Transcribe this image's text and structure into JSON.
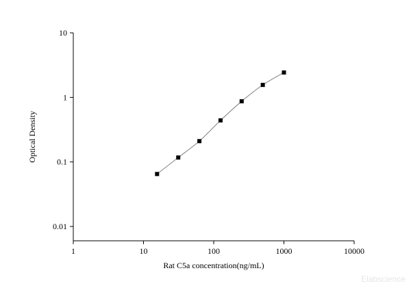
{
  "chart_data": {
    "type": "scatter",
    "x_label": "Rat C5a concentration(ng/mL)",
    "y_label": "Optical Density",
    "watermark": "Elabscience",
    "x_scale": "log",
    "y_scale": "log",
    "xlim": [
      1,
      10000
    ],
    "xticks": [
      1,
      10,
      100,
      1000,
      10000
    ],
    "ylim": [
      0.006,
      10
    ],
    "yticks": [
      0.01,
      0.1,
      1,
      10
    ],
    "fit_curve": true,
    "curve_color": "#808080",
    "series": [
      {
        "color": "#000000",
        "x": [
          15.6,
          31.25,
          62.5,
          125,
          250,
          500,
          1000
        ],
        "values": [
          0.065,
          0.117,
          0.21,
          0.44,
          0.87,
          1.56,
          2.43
        ]
      }
    ]
  }
}
